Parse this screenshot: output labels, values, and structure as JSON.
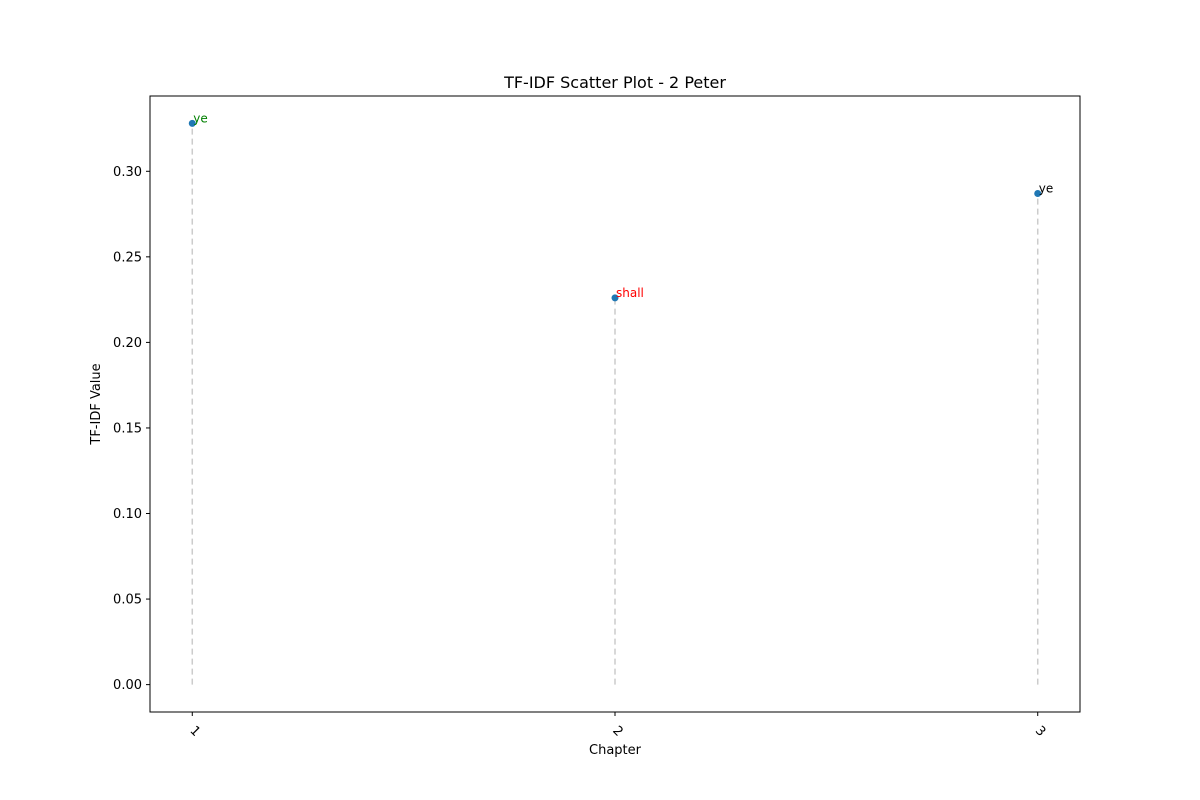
{
  "chart_data": {
    "type": "scatter",
    "title": "TF-IDF Scatter Plot - 2 Peter",
    "xlabel": "Chapter",
    "ylabel": "TF-IDF Value",
    "x_ticks": [
      "1",
      "2",
      "3"
    ],
    "x_tick_rotation_deg": 45,
    "y_ticks": [
      "0.00",
      "0.05",
      "0.10",
      "0.15",
      "0.20",
      "0.25",
      "0.30"
    ],
    "xlim": [
      0.9,
      3.1
    ],
    "ylim": [
      -0.016,
      0.344
    ],
    "grid": false,
    "stem_lines": true,
    "marker_color": "#1f77b4",
    "stem_color": "#cccccc",
    "points": [
      {
        "x": 1,
        "y": 0.328,
        "label": "ye",
        "label_color": "#008000"
      },
      {
        "x": 2,
        "y": 0.226,
        "label": "shall",
        "label_color": "#ff0000"
      },
      {
        "x": 3,
        "y": 0.287,
        "label": "ye",
        "label_color": "#000000"
      }
    ]
  }
}
